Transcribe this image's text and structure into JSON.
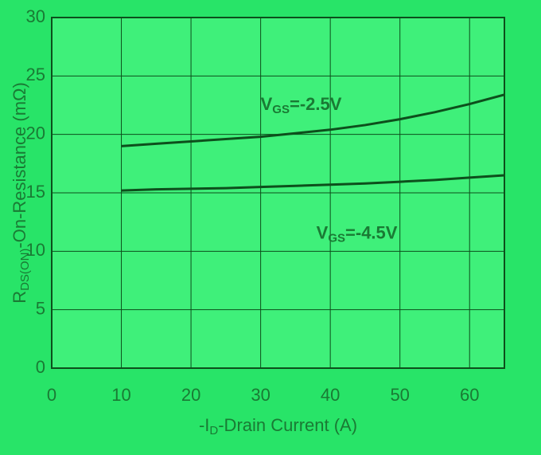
{
  "chart_data": {
    "type": "line",
    "x": [
      10,
      15,
      20,
      25,
      30,
      35,
      40,
      45,
      50,
      55,
      60,
      65
    ],
    "series": [
      {
        "name": "V_GS=-2.5V",
        "color": "#0d4f1c",
        "values": [
          19.0,
          19.2,
          19.4,
          19.6,
          19.8,
          20.1,
          20.4,
          20.8,
          21.3,
          21.9,
          22.6,
          23.4
        ]
      },
      {
        "name": "V_GS=-4.5V",
        "color": "#0d4f1c",
        "values": [
          15.2,
          15.3,
          15.35,
          15.4,
          15.5,
          15.6,
          15.7,
          15.8,
          15.95,
          16.1,
          16.3,
          16.5
        ]
      }
    ],
    "annotations": [
      {
        "main": "V",
        "sub": "GS",
        "rest": "=-2.5V",
        "x": 30,
        "y": 22.5
      },
      {
        "main": "V",
        "sub": "GS",
        "rest": "=-4.5V",
        "x": 38,
        "y": 11.5
      }
    ],
    "x_label": {
      "main": "-I",
      "sub": "D",
      "rest": "-Drain Current (A)"
    },
    "y_label": {
      "main": "R",
      "sub": "DS(ON)",
      "rest": "-On-Resistance (mΩ)"
    },
    "xlim": [
      0,
      65
    ],
    "xticks": [
      0,
      10,
      20,
      30,
      40,
      50,
      60
    ],
    "ylim": [
      0,
      30
    ],
    "yticks": [
      0,
      5,
      10,
      15,
      20,
      25,
      30
    ],
    "grid": true
  }
}
